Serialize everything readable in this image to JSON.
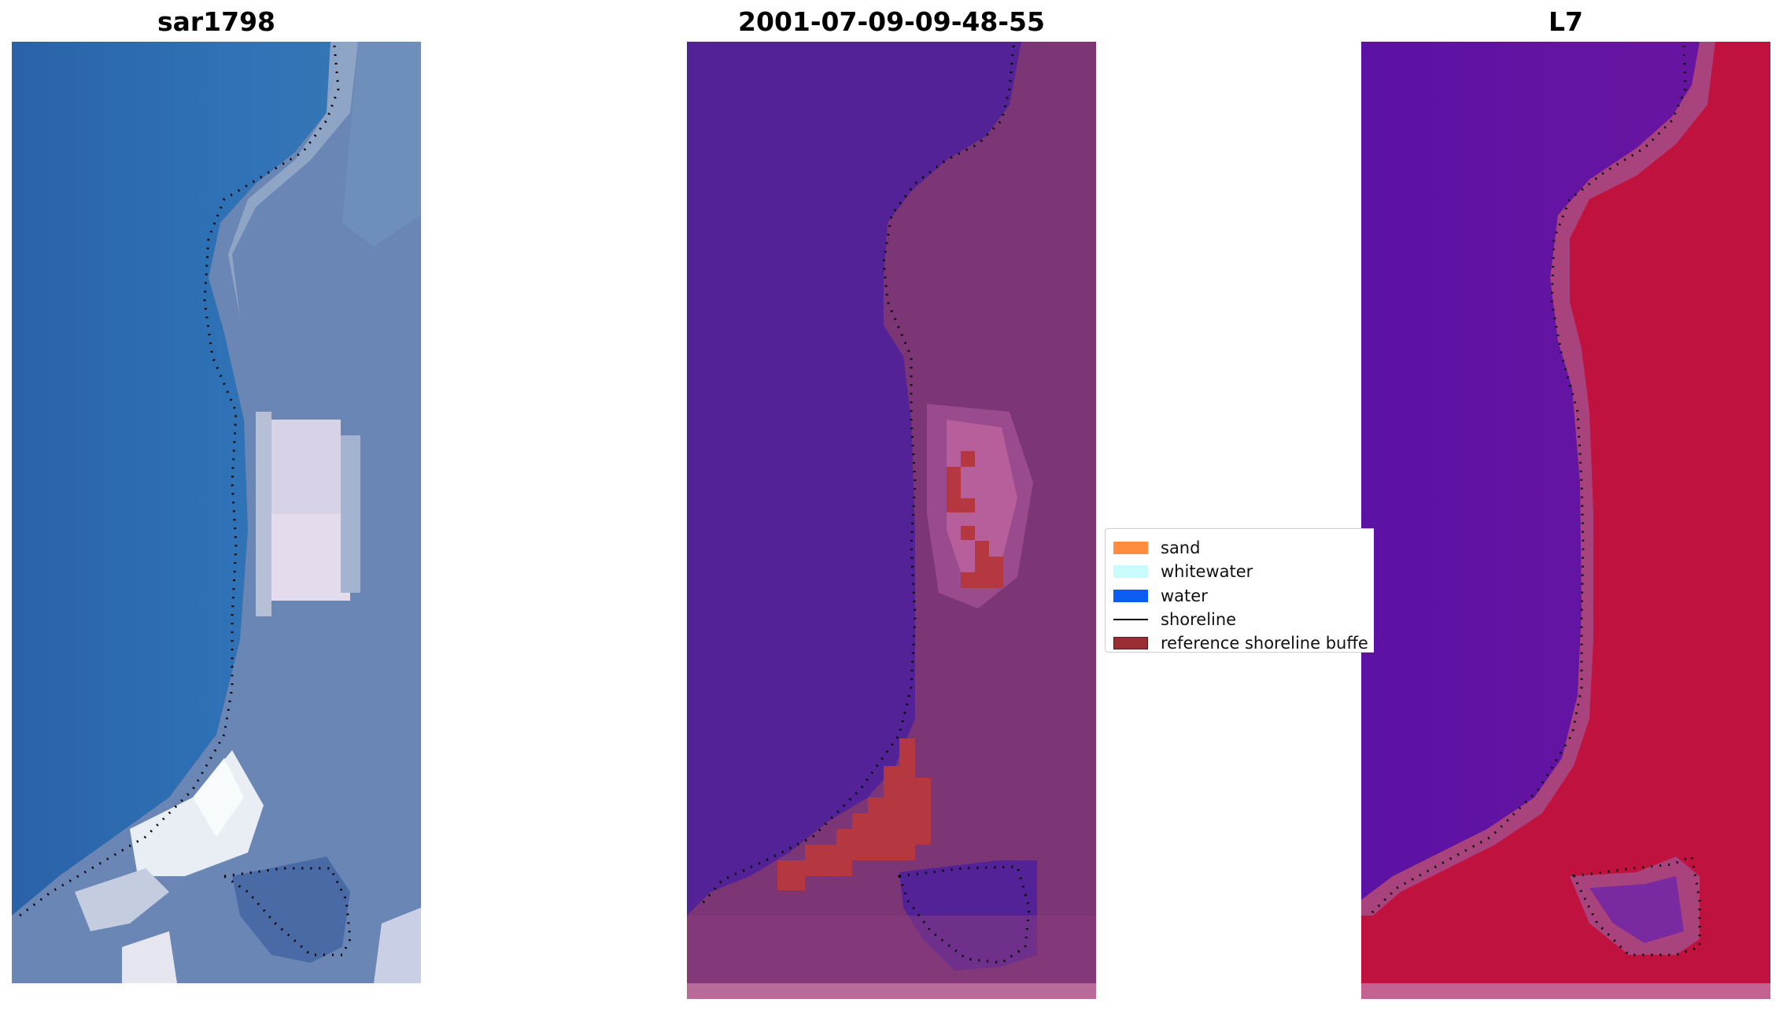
{
  "panels": {
    "rgb": {
      "title": "sar1798"
    },
    "classified": {
      "title": "2001-07-09-09-48-55"
    },
    "index": {
      "title": "L7"
    }
  },
  "legend": {
    "items": [
      {
        "label": "sand",
        "kind": "patch",
        "color": "#ff8c3f"
      },
      {
        "label": "whitewater",
        "kind": "patch",
        "color": "#c8fbfb"
      },
      {
        "label": "water",
        "kind": "patch",
        "color": "#0a5df0"
      },
      {
        "label": "shoreline",
        "kind": "line",
        "color": "#000000"
      },
      {
        "label": "reference shoreline buffe",
        "kind": "patch",
        "color": "#9b2d35"
      }
    ]
  },
  "colors": {
    "water_rgb": "#2a6fb3",
    "land_rgb": "#6a86b4",
    "water_class": "#532296",
    "land_class": "#7c3575",
    "buffer_class": "#b5373f",
    "water_index": "#5a12a2",
    "land_index": "#c0123e",
    "shoreline": "#000000"
  }
}
